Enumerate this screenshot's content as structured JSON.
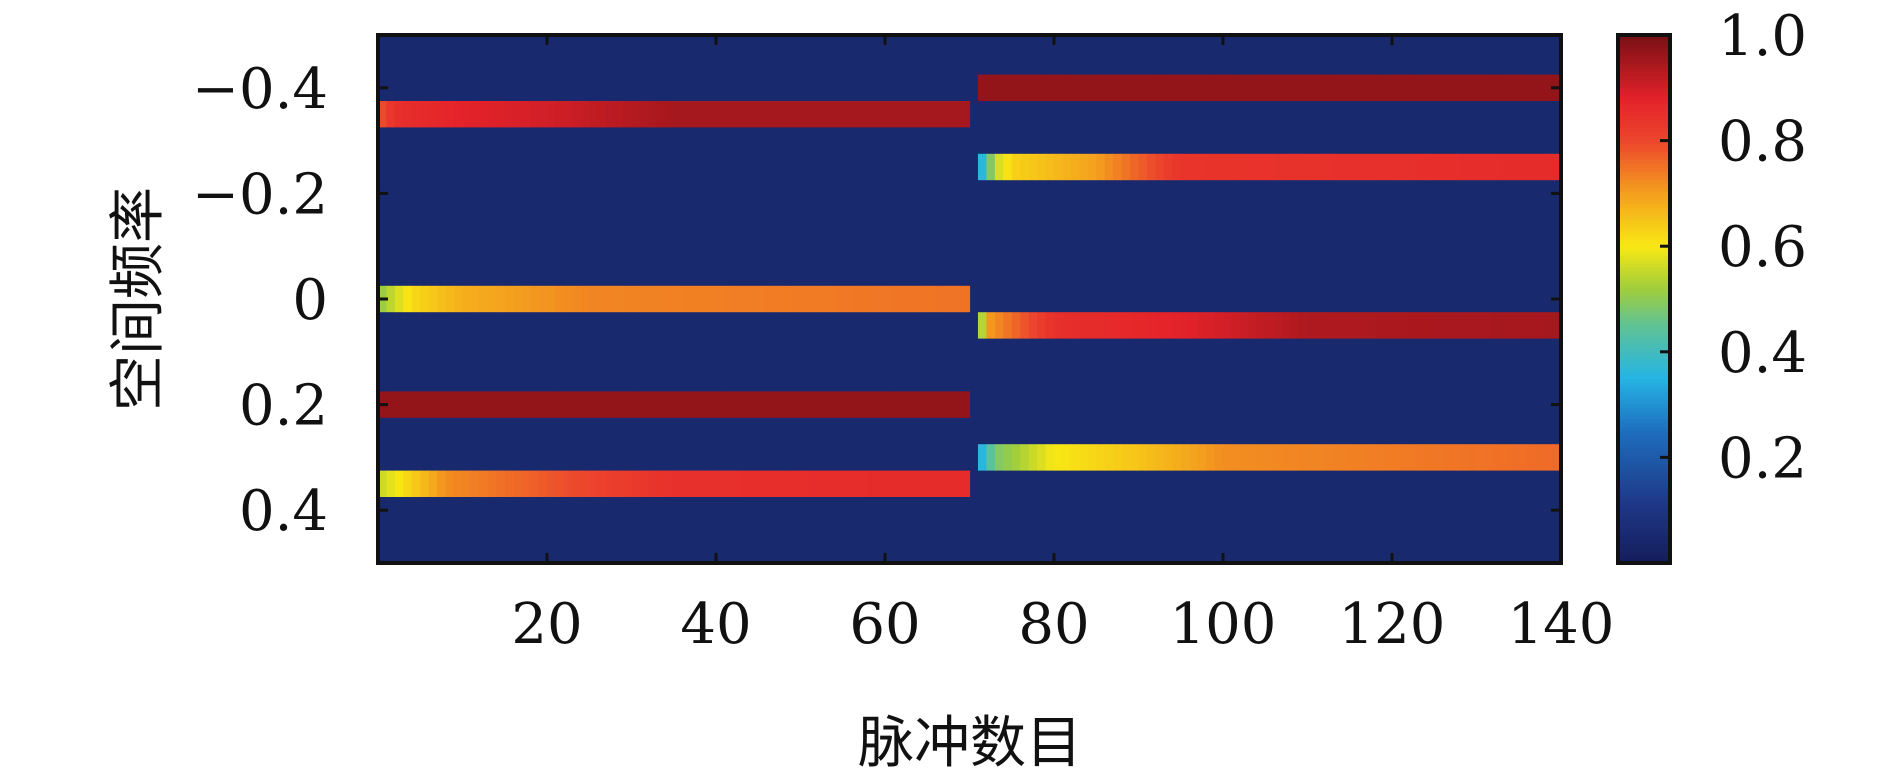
{
  "chart_data": {
    "type": "heatmap",
    "title": "",
    "xlabel": "脉冲数目",
    "ylabel": "空间频率",
    "xlim": [
      0,
      140
    ],
    "ylim": [
      -0.5,
      0.5
    ],
    "y_inverted": true,
    "x_ticks": [
      {
        "value": 20,
        "label": "20"
      },
      {
        "value": 40,
        "label": "40"
      },
      {
        "value": 60,
        "label": "60"
      },
      {
        "value": 80,
        "label": "80"
      },
      {
        "value": 100,
        "label": "100"
      },
      {
        "value": 120,
        "label": "120"
      },
      {
        "value": 140,
        "label": "140"
      }
    ],
    "y_ticks": [
      {
        "value": -0.4,
        "label": "−0.4"
      },
      {
        "value": -0.2,
        "label": "−0.2"
      },
      {
        "value": 0,
        "label": "0"
      },
      {
        "value": 0.2,
        "label": "0.2"
      },
      {
        "value": 0.4,
        "label": "0.4"
      }
    ],
    "colorbar": {
      "range": [
        0,
        1.0
      ],
      "colormap": "jet",
      "ticks": [
        {
          "value": 0.2,
          "label": "0.2"
        },
        {
          "value": 0.4,
          "label": "0.4"
        },
        {
          "value": 0.6,
          "label": "0.6"
        },
        {
          "value": 0.8,
          "label": "0.8"
        },
        {
          "value": 1.0,
          "label": "1.0"
        }
      ]
    },
    "background_value": 0.05,
    "series": [
      {
        "y": -0.35,
        "x_range": [
          0,
          70
        ],
        "values": [
          [
            0,
            0.78
          ],
          [
            2,
            0.85
          ],
          [
            10,
            0.88
          ],
          [
            20,
            0.9
          ],
          [
            35,
            0.95
          ],
          [
            70,
            0.95
          ]
        ]
      },
      {
        "y": 0.0,
        "x_range": [
          0,
          70
        ],
        "values": [
          [
            0,
            0.5
          ],
          [
            4,
            0.62
          ],
          [
            10,
            0.68
          ],
          [
            25,
            0.73
          ],
          [
            70,
            0.75
          ]
        ]
      },
      {
        "y": 0.2,
        "x_range": [
          0,
          70
        ],
        "values": [
          [
            0,
            0.97
          ],
          [
            70,
            0.97
          ]
        ]
      },
      {
        "y": 0.35,
        "x_range": [
          0,
          70
        ],
        "values": [
          [
            0,
            0.55
          ],
          [
            8,
            0.72
          ],
          [
            20,
            0.78
          ],
          [
            35,
            0.85
          ],
          [
            70,
            0.86
          ]
        ]
      },
      {
        "y": -0.4,
        "x_range": [
          71,
          140
        ],
        "values": [
          [
            71,
            0.97
          ],
          [
            140,
            0.97
          ]
        ]
      },
      {
        "y": -0.25,
        "x_range": [
          71,
          140
        ],
        "values": [
          [
            71,
            0.3
          ],
          [
            73,
            0.55
          ],
          [
            75,
            0.63
          ],
          [
            85,
            0.7
          ],
          [
            95,
            0.84
          ],
          [
            140,
            0.86
          ]
        ]
      },
      {
        "y": 0.05,
        "x_range": [
          71,
          140
        ],
        "values": [
          [
            71,
            0.38
          ],
          [
            72,
            0.7
          ],
          [
            80,
            0.85
          ],
          [
            95,
            0.88
          ],
          [
            110,
            0.94
          ],
          [
            140,
            0.95
          ]
        ]
      },
      {
        "y": 0.3,
        "x_range": [
          71,
          140
        ],
        "values": [
          [
            71,
            0.32
          ],
          [
            73,
            0.48
          ],
          [
            80,
            0.6
          ],
          [
            90,
            0.65
          ],
          [
            100,
            0.72
          ],
          [
            140,
            0.76
          ]
        ]
      }
    ]
  }
}
